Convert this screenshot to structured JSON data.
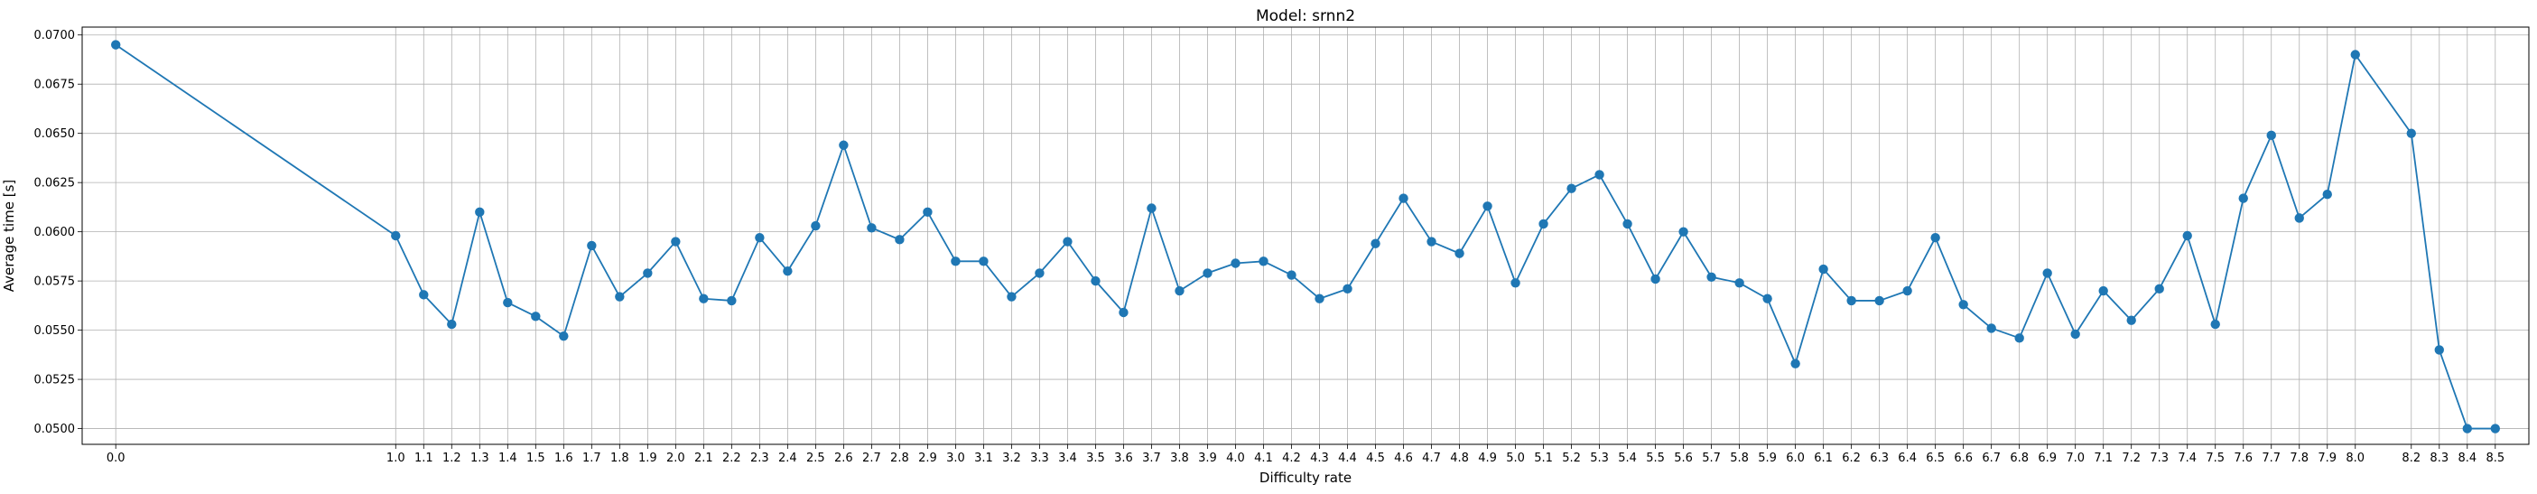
{
  "chart_data": {
    "type": "line",
    "title": "Model: srnn2",
    "xlabel": "Difficulty rate",
    "ylabel": "Average time [s]",
    "grid": true,
    "legend": "none",
    "line_color": "#1f77b4",
    "marker": "circle",
    "x": [
      "0.0",
      "1.0",
      "1.1",
      "1.2",
      "1.3",
      "1.4",
      "1.5",
      "1.6",
      "1.7",
      "1.8",
      "1.9",
      "2.0",
      "2.1",
      "2.2",
      "2.3",
      "2.4",
      "2.5",
      "2.6",
      "2.7",
      "2.8",
      "2.9",
      "3.0",
      "3.1",
      "3.2",
      "3.3",
      "3.4",
      "3.5",
      "3.6",
      "3.7",
      "3.8",
      "3.9",
      "4.0",
      "4.1",
      "4.2",
      "4.3",
      "4.4",
      "4.5",
      "4.6",
      "4.7",
      "4.8",
      "4.9",
      "5.0",
      "5.1",
      "5.2",
      "5.3",
      "5.4",
      "5.5",
      "5.6",
      "5.7",
      "5.8",
      "5.9",
      "6.0",
      "6.1",
      "6.2",
      "6.3",
      "6.4",
      "6.5",
      "6.6",
      "6.7",
      "6.8",
      "6.9",
      "7.0",
      "7.1",
      "7.2",
      "7.3",
      "7.4",
      "7.5",
      "7.6",
      "7.7",
      "7.8",
      "7.9",
      "8.0",
      "8.2",
      "8.3",
      "8.4",
      "8.5"
    ],
    "y": [
      0.0695,
      0.0598,
      0.0568,
      0.0553,
      0.061,
      0.0564,
      0.0557,
      0.0547,
      0.0593,
      0.0567,
      0.0579,
      0.0595,
      0.0566,
      0.0565,
      0.0597,
      0.058,
      0.0603,
      0.0644,
      0.0602,
      0.0596,
      0.061,
      0.0585,
      0.0585,
      0.0567,
      0.0579,
      0.0595,
      0.0575,
      0.0559,
      0.0612,
      0.057,
      0.0579,
      0.0584,
      0.0585,
      0.0578,
      0.0566,
      0.0571,
      0.0594,
      0.0617,
      0.0595,
      0.0589,
      0.0613,
      0.0574,
      0.0604,
      0.0622,
      0.0629,
      0.0604,
      0.0576,
      0.06,
      0.0577,
      0.0574,
      0.0566,
      0.0533,
      0.0581,
      0.0565,
      0.0565,
      0.057,
      0.0597,
      0.0563,
      0.0551,
      0.0546,
      0.0579,
      0.0548,
      0.057,
      0.0555,
      0.0571,
      0.0598,
      0.0553,
      0.0617,
      0.0649,
      0.0607,
      0.0619,
      0.069,
      0.065,
      0.054,
      0.05,
      0.05
    ],
    "yticks": [
      "0.0500",
      "0.0525",
      "0.0550",
      "0.0575",
      "0.0600",
      "0.0625",
      "0.0650",
      "0.0675",
      "0.0700"
    ],
    "ylim": [
      0.0492,
      0.0704
    ],
    "xlim": [
      -0.12,
      8.62
    ]
  }
}
